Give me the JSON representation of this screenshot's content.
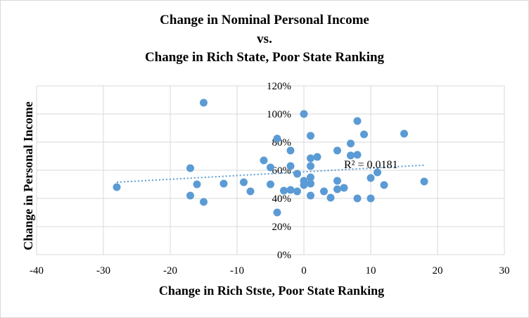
{
  "chart_data": {
    "type": "scatter",
    "title": [
      "Change in Nominal Personal Income",
      "vs.",
      "Change in Rich State, Poor State Ranking"
    ],
    "xlabel": "Change in Rich Stste, Poor State Ranking",
    "ylabel": "Change in Personal Income",
    "xlim": [
      -40,
      30
    ],
    "ylim": [
      0,
      1.2
    ],
    "x_ticks": [
      -40,
      -30,
      -20,
      -10,
      0,
      10,
      20,
      30
    ],
    "x_tick_labels": [
      "-40",
      "-30",
      "-20",
      "-10",
      "0",
      "10",
      "20",
      "30"
    ],
    "y_ticks": [
      0,
      0.2,
      0.4,
      0.6,
      0.8,
      1.0,
      1.2
    ],
    "y_tick_labels": [
      "0%",
      "20%",
      "40%",
      "60%",
      "80%",
      "100%",
      "120%"
    ],
    "grid": true,
    "point_color": "#5b9bd5",
    "trendline": {
      "type": "linear",
      "x_range": [
        -28,
        18
      ],
      "y_values": [
        0.515,
        0.636
      ],
      "style": "dotted",
      "color": "#5b9bd5"
    },
    "annotation": "R² = 0.0181",
    "points": [
      [
        -28,
        0.48
      ],
      [
        -17,
        0.615
      ],
      [
        -17,
        0.42
      ],
      [
        -16,
        0.5
      ],
      [
        -15,
        1.08
      ],
      [
        -15,
        0.375
      ],
      [
        -12,
        0.505
      ],
      [
        -9,
        0.515
      ],
      [
        -8,
        0.45
      ],
      [
        -6,
        0.67
      ],
      [
        -5,
        0.62
      ],
      [
        -5,
        0.5
      ],
      [
        -4,
        0.825
      ],
      [
        -4,
        0.3
      ],
      [
        -3,
        0.455
      ],
      [
        -2,
        0.74
      ],
      [
        -2,
        0.63
      ],
      [
        -2,
        0.46
      ],
      [
        -1,
        0.575
      ],
      [
        -1,
        0.45
      ],
      [
        0,
        1.0
      ],
      [
        0,
        0.525
      ],
      [
        0,
        0.495
      ],
      [
        1,
        0.845
      ],
      [
        1,
        0.685
      ],
      [
        1,
        0.63
      ],
      [
        1,
        0.55
      ],
      [
        1,
        0.505
      ],
      [
        1,
        0.42
      ],
      [
        2,
        0.695
      ],
      [
        3,
        0.45
      ],
      [
        4,
        0.405
      ],
      [
        5,
        0.74
      ],
      [
        5,
        0.525
      ],
      [
        5,
        0.465
      ],
      [
        6,
        0.475
      ],
      [
        7,
        0.79
      ],
      [
        7,
        0.705
      ],
      [
        8,
        0.95
      ],
      [
        8,
        0.71
      ],
      [
        8,
        0.4
      ],
      [
        9,
        0.855
      ],
      [
        10,
        0.545
      ],
      [
        10,
        0.4
      ],
      [
        11,
        0.585
      ],
      [
        12,
        0.495
      ],
      [
        15,
        0.86
      ],
      [
        18,
        0.52
      ]
    ]
  }
}
